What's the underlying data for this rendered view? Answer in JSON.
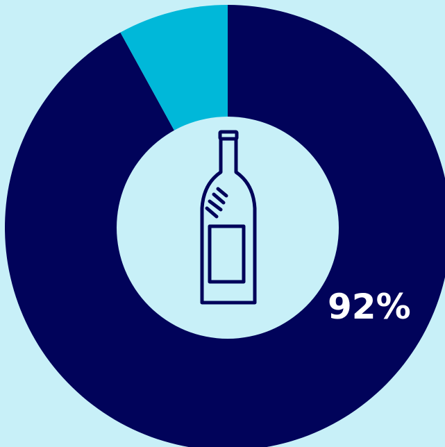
{
  "colors": {
    "background": "#c8f0f8",
    "primary_slice": "#01035a",
    "secondary_slice": "#00b8d9",
    "center": "#c8f0f8",
    "icon_stroke": "#01035a",
    "label": "#ffffff"
  },
  "center_icon": "wine-bottle-icon",
  "chart_data": {
    "type": "pie",
    "variant": "donut",
    "slices": [
      {
        "value": 92,
        "color": "#01035a"
      },
      {
        "value": 8,
        "color": "#00b8d9"
      }
    ],
    "data_labels": [
      "92%"
    ],
    "start_angle_deg": 0,
    "direction": "clockwise"
  }
}
